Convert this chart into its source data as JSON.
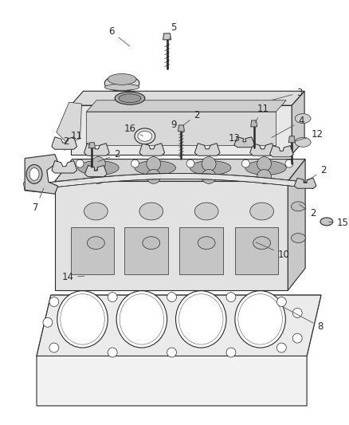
{
  "background_color": "#ffffff",
  "fig_width": 4.39,
  "fig_height": 5.33,
  "dpi": 100,
  "line_color": "#2a2a2a",
  "label_color": "#2a2a2a",
  "label_fontsize": 8.5,
  "leader_line_color": "#555555",
  "leader_linewidth": 0.6,
  "lw_main": 0.8,
  "lw_thin": 0.5,
  "face_light": "#f0f0f0",
  "face_mid": "#e0e0e0",
  "face_dark": "#cccccc",
  "face_side": "#d8d8d8"
}
